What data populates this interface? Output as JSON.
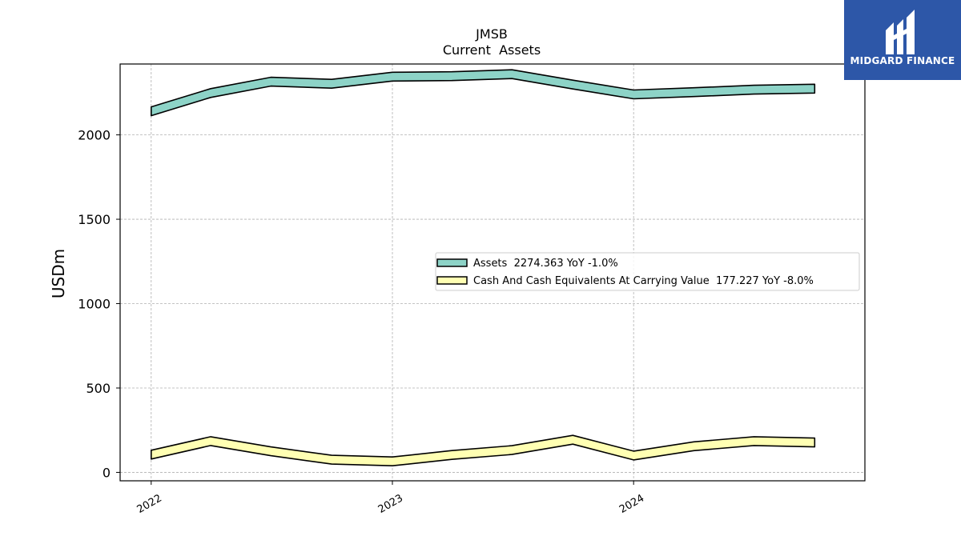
{
  "logo": {
    "name": "MIDGARD FINANCE",
    "background": "#2d57a8"
  },
  "chart_data": {
    "type": "area",
    "title": "JMSB",
    "subtitle": "Current  Assets",
    "ylabel": "USDm",
    "xlabel": "",
    "ylim": [
      -50,
      2420
    ],
    "yticks": [
      0,
      500,
      1000,
      1500,
      2000
    ],
    "xticks": [
      "2022",
      "2023",
      "2024"
    ],
    "xlim": [
      "2021-11-15",
      "2024-12-16"
    ],
    "grid": true,
    "legend_position": "center-right",
    "x": [
      "2022-01-01",
      "2022-04-01",
      "2022-07-01",
      "2022-10-01",
      "2023-01-01",
      "2023-04-01",
      "2023-07-01",
      "2023-10-01",
      "2024-01-01",
      "2024-04-01",
      "2024-07-01",
      "2024-10-01"
    ],
    "series": [
      {
        "name": "Assets",
        "legend": "Assets  2274.363 YoY -1.0%",
        "color": "#8dd3c7",
        "values": [
          2140,
          2248,
          2315,
          2303,
          2345,
          2348,
          2360,
          2298,
          2240,
          2253,
          2268,
          2274
        ]
      },
      {
        "name": "Cash And Cash Equivalents At Carrying Value",
        "legend": "Cash And Cash Equivalents At Carrying Value  177.227 YoY -8.0%",
        "color": "#ffffb3",
        "values": [
          105,
          185,
          125,
          75,
          65,
          103,
          132,
          193,
          100,
          155,
          185,
          177
        ]
      }
    ]
  }
}
